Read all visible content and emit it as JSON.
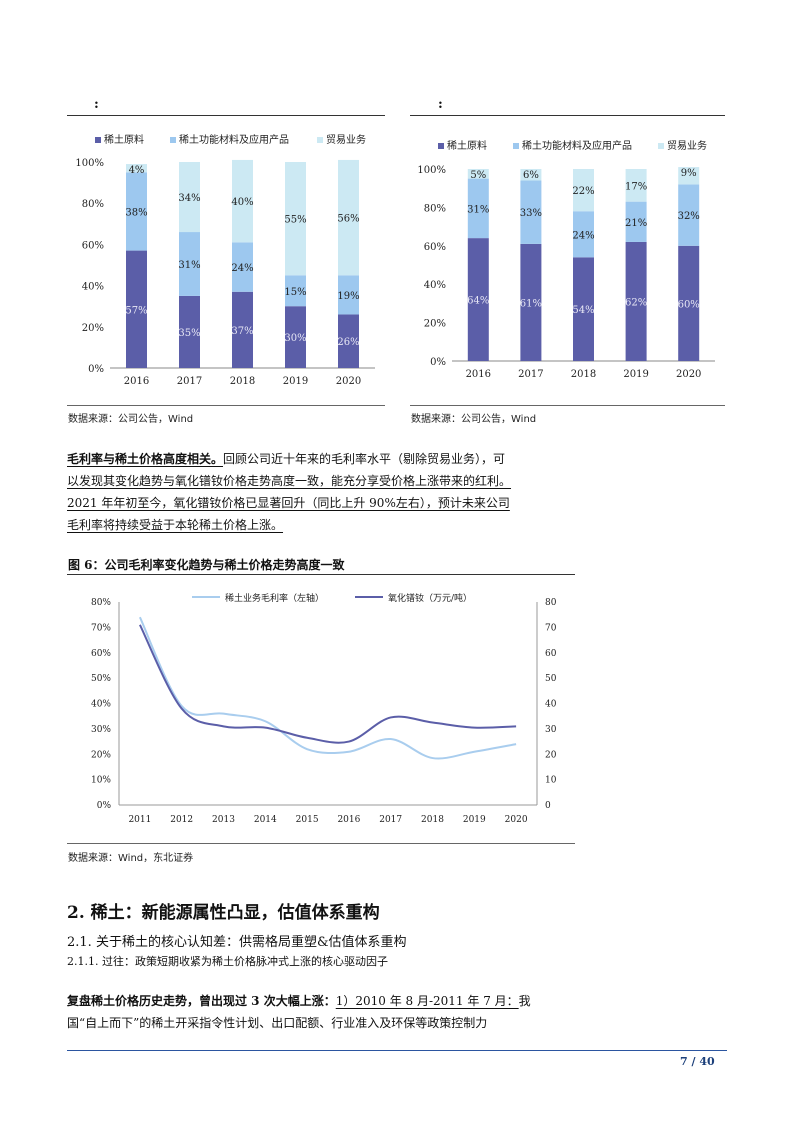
{
  "chart_left": {
    "header_label": ":",
    "legend": [
      "稀土原料",
      "稀土功能材料及应用产品",
      "贸易业务"
    ],
    "source": "数据来源：公司公告，Wind",
    "chart_data": {
      "type": "bar",
      "stacked": true,
      "categories": [
        "2016",
        "2017",
        "2018",
        "2019",
        "2020"
      ],
      "yticks": [
        "0%",
        "20%",
        "40%",
        "60%",
        "80%",
        "100%"
      ],
      "ylim": [
        0,
        100
      ],
      "series": [
        {
          "name": "稀土原料",
          "values": [
            57,
            35,
            37,
            30,
            26
          ],
          "labels": [
            "57%",
            "35%",
            "37%",
            "30%",
            "26%"
          ],
          "color": "#5b5ea8"
        },
        {
          "name": "稀土功能材料及应用产品",
          "values": [
            38,
            31,
            24,
            15,
            19
          ],
          "labels": [
            "38%",
            "31%",
            "24%",
            "15%",
            "19%"
          ],
          "color": "#9dc8ef"
        },
        {
          "name": "贸易业务",
          "values": [
            4,
            34,
            40,
            55,
            56
          ],
          "labels": [
            "4%",
            "34%",
            "40%",
            "55%",
            "56%"
          ],
          "color": "#cce9f3"
        }
      ]
    }
  },
  "chart_right": {
    "header_label": ":",
    "legend": [
      "稀土原料",
      "稀土功能材料及应用产品",
      "贸易业务"
    ],
    "source": "数据来源：公司公告，Wind",
    "chart_data": {
      "type": "bar",
      "stacked": true,
      "categories": [
        "2016",
        "2017",
        "2018",
        "2019",
        "2020"
      ],
      "yticks": [
        "0%",
        "20%",
        "40%",
        "60%",
        "80%",
        "100%"
      ],
      "ylim": [
        0,
        100
      ],
      "series": [
        {
          "name": "稀土原料",
          "values": [
            64,
            61,
            54,
            62,
            60
          ],
          "labels": [
            "64%",
            "61%",
            "54%",
            "62%",
            "60%"
          ],
          "color": "#5b5ea8"
        },
        {
          "name": "稀土功能材料及应用产品",
          "values": [
            31,
            33,
            24,
            21,
            32
          ],
          "labels": [
            "31%",
            "33%",
            "24%",
            "21%",
            "32%"
          ],
          "color": "#9dc8ef"
        },
        {
          "name": "贸易业务",
          "values": [
            5,
            6,
            22,
            17,
            9
          ],
          "labels": [
            "5%",
            "6%",
            "22%",
            "17%",
            "9%"
          ],
          "color": "#cce9f3"
        }
      ]
    }
  },
  "para1": {
    "bold": "毛利率与稀土价格高度相关。",
    "line1": "回顾公司近十年来的毛利率水平（剔除贸易业务），可",
    "line2": "以发现其变化趋势与氧化镨钕价格走势高度一致，能充分享受价格上涨带来的红利。",
    "line3": "2021 年年初至今，氧化镨钕价格已显著回升（同比上升 90%左右），预计未来公司",
    "line4": "毛利率将持续受益于本轮稀土价格上涨。"
  },
  "figure6": {
    "title": "图 6：公司毛利率变化趋势与稀土价格走势高度一致",
    "source": "数据来源：Wind，东北证券",
    "chart_data": {
      "type": "line",
      "x": [
        "2011",
        "2012",
        "2013",
        "2014",
        "2015",
        "2016",
        "2017",
        "2018",
        "2019",
        "2020"
      ],
      "yticks_left": [
        "0%",
        "10%",
        "20%",
        "30%",
        "40%",
        "50%",
        "60%",
        "70%",
        "80%"
      ],
      "yticks_right": [
        "0",
        "10",
        "20",
        "30",
        "40",
        "50",
        "60",
        "70",
        "80"
      ],
      "ylim_left": [
        0,
        80
      ],
      "ylim_right": [
        0,
        80
      ],
      "series": [
        {
          "name": "稀土业务毛利率（左轴）",
          "axis": "left",
          "values": [
            74,
            39,
            36,
            33,
            22,
            21,
            26,
            18.5,
            21,
            24
          ],
          "color": "#a9cdee"
        },
        {
          "name": "氧化镨钕（万元/吨）",
          "axis": "right",
          "values": [
            71,
            38,
            31,
            30.5,
            26.5,
            25,
            34.5,
            32.5,
            30.5,
            31
          ],
          "color": "#5b5ea8"
        }
      ]
    }
  },
  "section": {
    "title": "2. 稀土：新能源属性凸显，估值体系重构",
    "sub1": "2.1.  关于稀土的核心认知差：供需格局重塑&估值体系重构",
    "sub2": "2.1.1.   过往：政策短期收紧为稀土价格脉冲式上涨的核心驱动因子",
    "p_bold": "复盘稀土价格历史走势，曾出现过 3 次大幅上涨：",
    "p_ul": "1）2010 年 8 月-2011 年 7 月：",
    "p_tail": "我",
    "p_line2": "国“自上而下”的稀土开采指令性计划、出口配额、行业准入及环保等政策控制力"
  },
  "footer": {
    "page": "7 / 40"
  }
}
